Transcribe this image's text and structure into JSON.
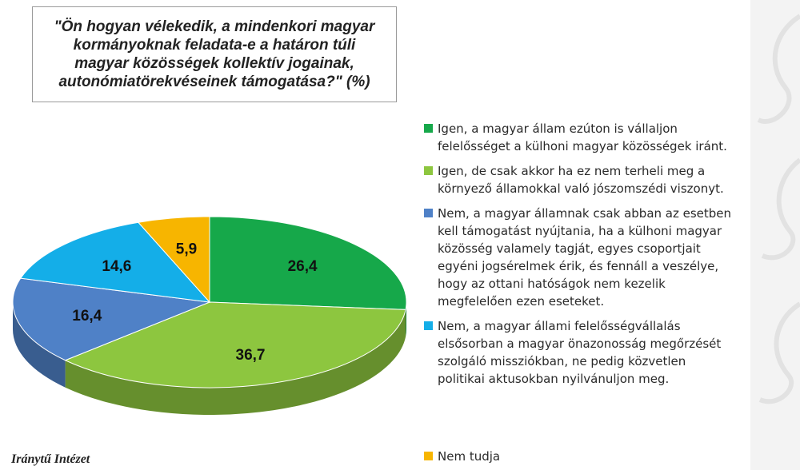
{
  "chart_data": {
    "type": "pie",
    "title": "\"Ön hogyan vélekedik, a mindenkori magyar kormányoknak feladata-e a határon túli magyar közösségek kollektív jogainak, autonómiatörekvéseinek támogatása?\" (%)",
    "categories": [
      "Igen, a magyar állam ezúton is vállaljon\nfelelősséget a külhoni magyar közösségek iránt.",
      "Igen, de csak akkor ha ez nem terheli meg a\nkörnyező államokkal való jószomszédi viszonyt.",
      "Nem, a magyar államnak csak abban az esetben\nkell támogatást nyújtania, ha a külhoni magyar\nközösség valamely tagját, egyes csoportjait\negyéni jogsérelmek érik, és fennáll a veszélye,\nhogy az ottani hatóságok nem kezelik\nmegfelelően ezen eseteket.",
      "Nem, a magyar állami felelősségvállalás\nelsősorban a magyar önazonosság megőrzését\nszolgáló missziókban, ne pedig közvetlen\npolitikai aktusokban nyilvánuljon meg.",
      "Nem tudja"
    ],
    "values": [
      26.4,
      36.7,
      16.4,
      14.6,
      5.9
    ],
    "value_labels": [
      "26,4",
      "36,7",
      "16,4",
      "14,6",
      "5,9"
    ],
    "colors": [
      "#16a84a",
      "#8dc63f",
      "#4f81c7",
      "#14aee8",
      "#f7b500"
    ],
    "legend_position": "right",
    "style": "3d"
  },
  "source": "Iránytű Intézet"
}
